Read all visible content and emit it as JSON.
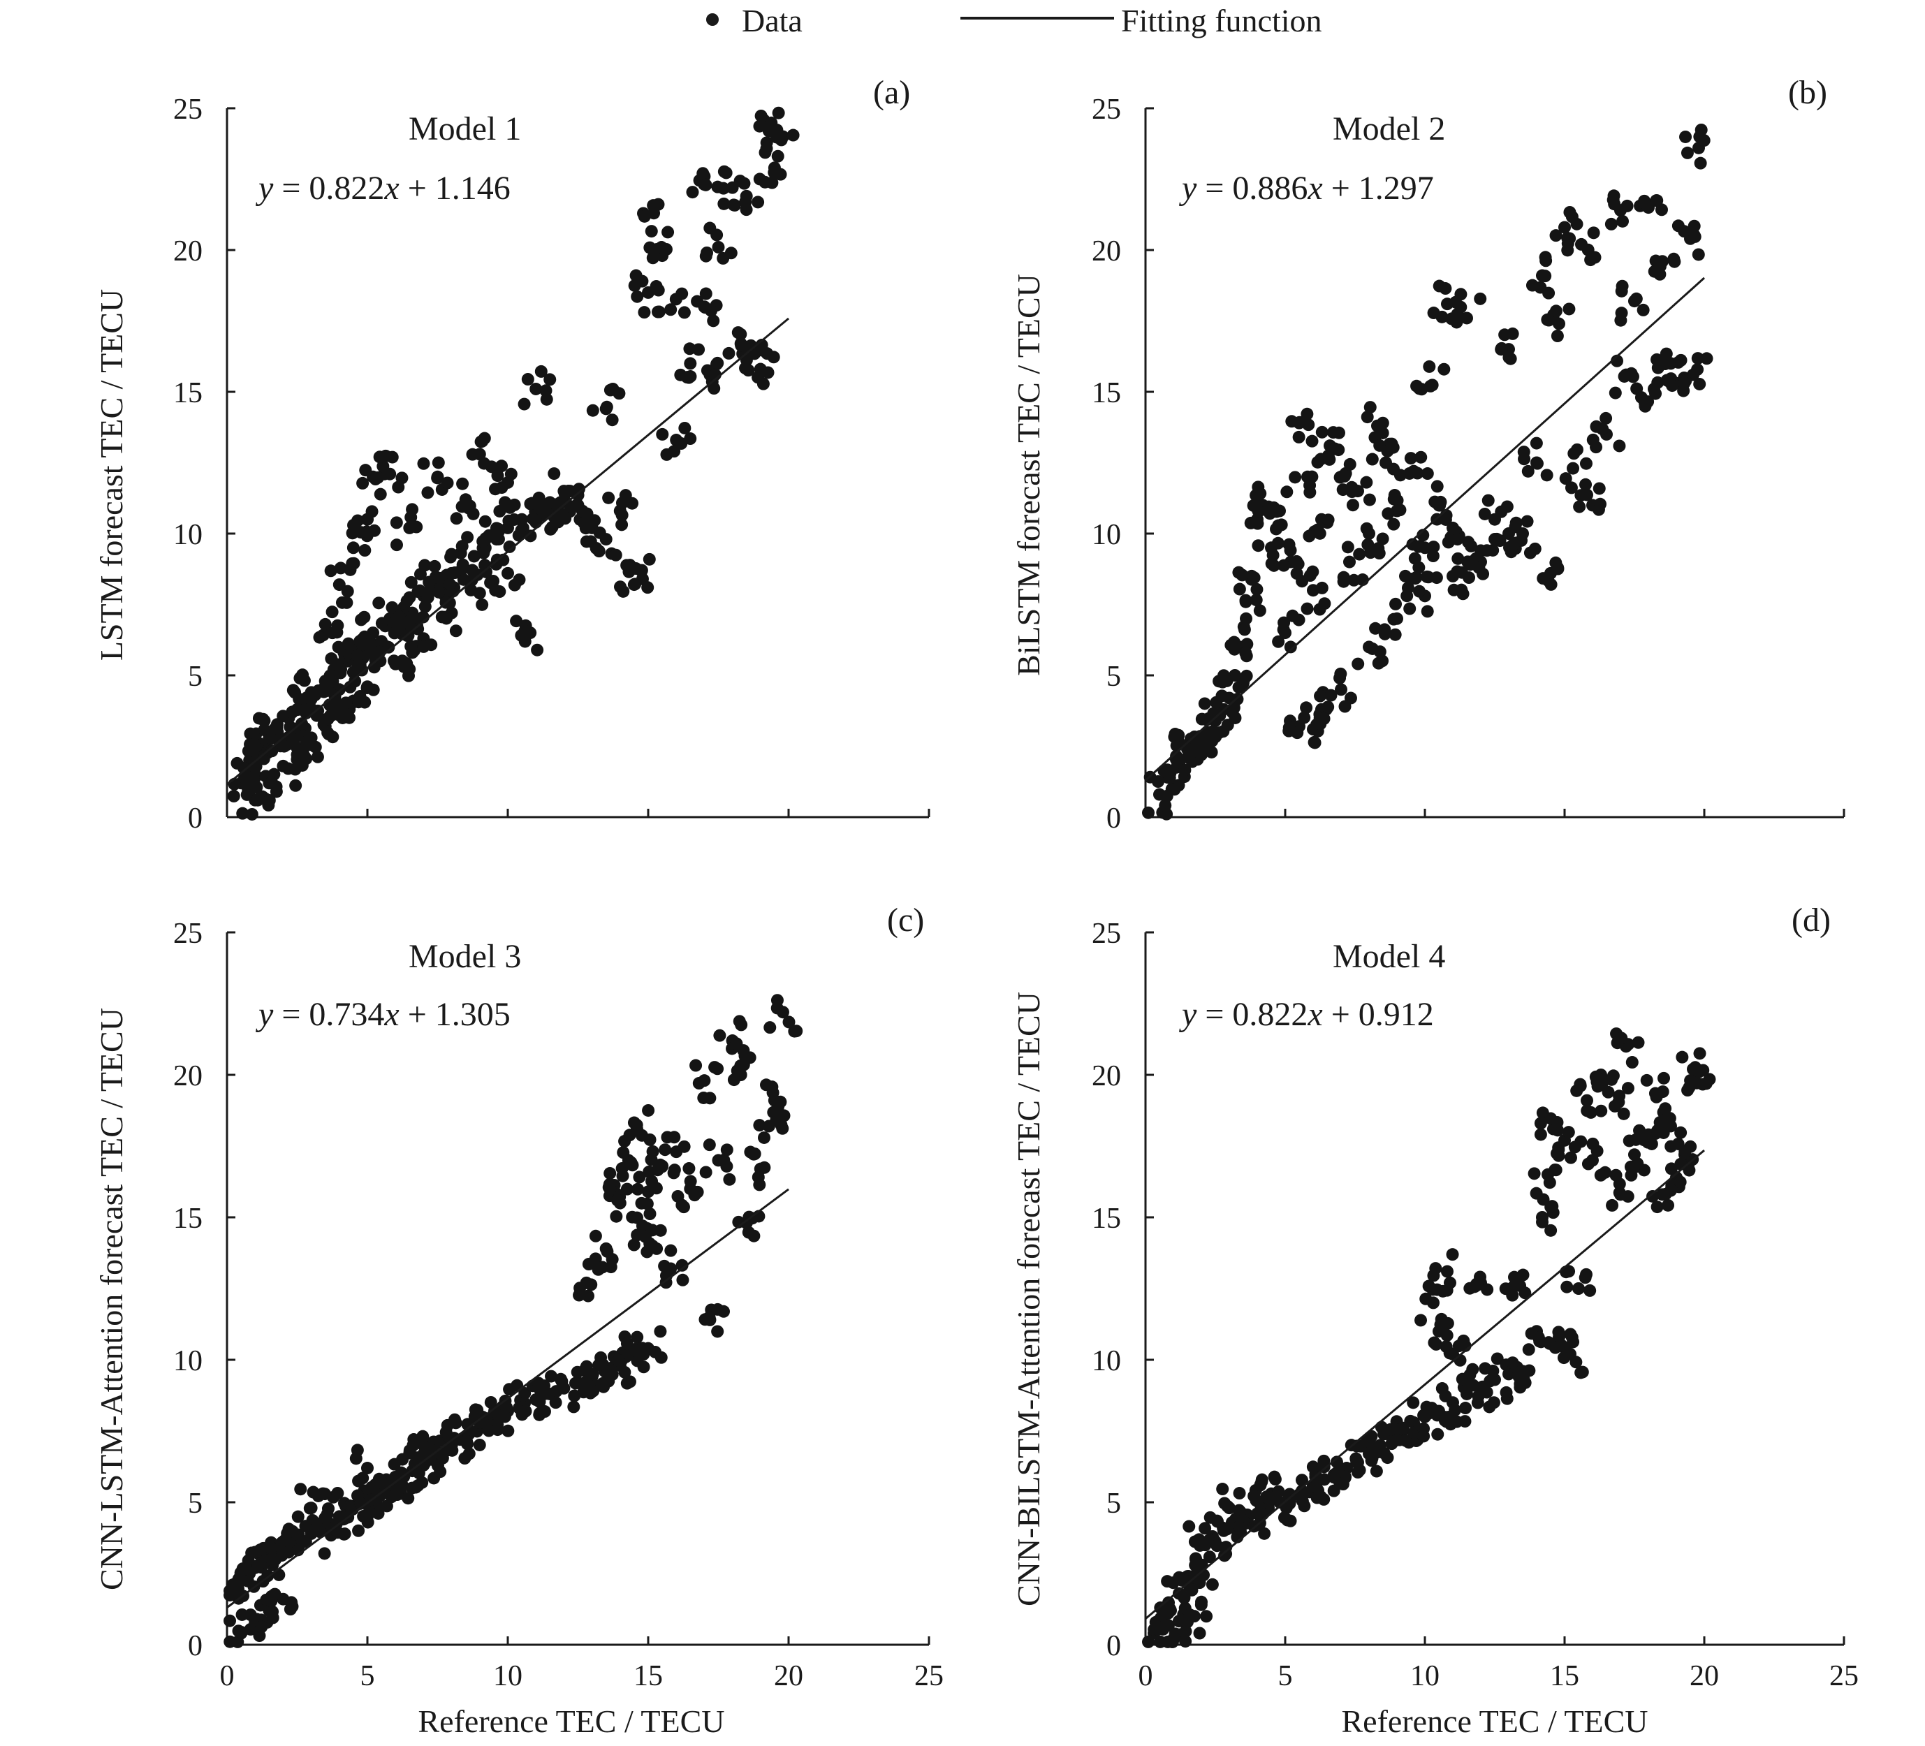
{
  "legend": {
    "data_label": "Data",
    "fit_label": "Fitting function"
  },
  "shared": {
    "xlabel": "Reference TEC / TECU",
    "xticks": [
      0,
      5,
      10,
      15,
      20,
      25
    ],
    "yticks": [
      0,
      5,
      10,
      15,
      20,
      25
    ],
    "xlim": [
      0,
      25
    ],
    "ylim": [
      0,
      25
    ]
  },
  "chart_data": [
    {
      "type": "scatter",
      "panel": "(a)",
      "model": "Model 1",
      "equation": "y = 0.822x + 1.146",
      "eq_parts": {
        "slope": "0.822",
        "intercept": "1.146"
      },
      "fit": {
        "slope": 0.822,
        "intercept": 1.146,
        "x_range": [
          0,
          20
        ]
      },
      "ylabel": "LSTM  forecast TEC / TECU",
      "xlabel": "Reference TEC / TECU",
      "xlim": [
        0,
        25
      ],
      "ylim": [
        0,
        25
      ],
      "points": [
        [
          0.5,
          1.2
        ],
        [
          0.8,
          2.0
        ],
        [
          1.0,
          1.5
        ],
        [
          1.2,
          2.4
        ],
        [
          1.5,
          2.8
        ],
        [
          1.8,
          3.0
        ],
        [
          2.0,
          2.6
        ],
        [
          2.2,
          3.5
        ],
        [
          2.5,
          3.8
        ],
        [
          2.8,
          4.0
        ],
        [
          3.0,
          4.4
        ],
        [
          3.2,
          3.6
        ],
        [
          3.5,
          4.8
        ],
        [
          3.8,
          5.2
        ],
        [
          4.0,
          4.5
        ],
        [
          4.3,
          5.5
        ],
        [
          4.6,
          6.0
        ],
        [
          5.0,
          5.8
        ],
        [
          5.2,
          6.5
        ],
        [
          5.5,
          6.2
        ],
        [
          5.8,
          7.0
        ],
        [
          6.0,
          6.8
        ],
        [
          6.3,
          7.4
        ],
        [
          6.6,
          7.2
        ],
        [
          7.0,
          7.8
        ],
        [
          7.3,
          8.2
        ],
        [
          7.6,
          8.0
        ],
        [
          8.0,
          8.6
        ],
        [
          8.4,
          8.9
        ],
        [
          8.8,
          9.2
        ],
        [
          9.2,
          9.5
        ],
        [
          9.6,
          9.8
        ],
        [
          10.0,
          10.2
        ],
        [
          10.5,
          10.5
        ],
        [
          11.0,
          10.4
        ],
        [
          11.5,
          10.8
        ],
        [
          12.0,
          10.6
        ],
        [
          12.5,
          11.0
        ],
        [
          13.0,
          10.2
        ],
        [
          13.5,
          9.8
        ],
        [
          14.0,
          10.8
        ],
        [
          14.5,
          8.2
        ],
        [
          14.8,
          8.4
        ],
        [
          3.5,
          6.8
        ],
        [
          4.0,
          8.2
        ],
        [
          4.5,
          9.5
        ],
        [
          5.0,
          10.5
        ],
        [
          5.2,
          12.0
        ],
        [
          5.8,
          12.1
        ],
        [
          6.5,
          10.2
        ],
        [
          7.5,
          12.0
        ],
        [
          8.5,
          11.2
        ],
        [
          9.0,
          12.8
        ],
        [
          10.0,
          11.8
        ],
        [
          11.0,
          15.1
        ],
        [
          12.0,
          11.5
        ],
        [
          13.5,
          14.4
        ],
        [
          15.0,
          18.5
        ],
        [
          15.2,
          21.3
        ],
        [
          15.5,
          19.8
        ],
        [
          15.8,
          17.9
        ],
        [
          16.0,
          13.3
        ],
        [
          16.5,
          16.0
        ],
        [
          17.0,
          22.6
        ],
        [
          17.0,
          18.0
        ],
        [
          17.2,
          15.6
        ],
        [
          17.5,
          20.1
        ],
        [
          18.0,
          22.2
        ],
        [
          18.3,
          16.7
        ],
        [
          18.5,
          21.9
        ],
        [
          18.8,
          16.4
        ],
        [
          19.0,
          15.8
        ],
        [
          19.3,
          24.2
        ],
        [
          19.5,
          22.9
        ],
        [
          19.8,
          24.0
        ],
        [
          1.0,
          0.6
        ],
        [
          1.5,
          1.2
        ],
        [
          2.0,
          1.8
        ],
        [
          2.5,
          2.2
        ],
        [
          3.0,
          2.8
        ],
        [
          3.5,
          3.2
        ],
        [
          4.0,
          3.6
        ],
        [
          4.5,
          4.1
        ],
        [
          5.0,
          4.6
        ],
        [
          6.0,
          5.4
        ],
        [
          7.0,
          6.3
        ],
        [
          8.0,
          7.2
        ],
        [
          9.0,
          7.9
        ],
        [
          10.0,
          8.6
        ],
        [
          10.8,
          6.5
        ]
      ]
    },
    {
      "type": "scatter",
      "panel": "(b)",
      "model": "Model 2",
      "equation": "y = 0.886x + 1.297",
      "eq_parts": {
        "slope": "0.886",
        "intercept": "1.297"
      },
      "fit": {
        "slope": 0.886,
        "intercept": 1.297,
        "x_range": [
          0,
          20
        ]
      },
      "ylabel": "BiLSTM forecast TEC / TECU",
      "xlabel": "Reference TEC / TECU",
      "xlim": [
        0,
        25
      ],
      "ylim": [
        0,
        25
      ],
      "points": [
        [
          0.5,
          0.8
        ],
        [
          0.8,
          1.4
        ],
        [
          1.0,
          1.0
        ],
        [
          1.2,
          2.0
        ],
        [
          1.5,
          2.4
        ],
        [
          1.8,
          2.8
        ],
        [
          2.0,
          2.2
        ],
        [
          2.2,
          3.0
        ],
        [
          2.5,
          3.4
        ],
        [
          2.8,
          3.8
        ],
        [
          3.0,
          4.2
        ],
        [
          3.2,
          5.0
        ],
        [
          3.4,
          6.0
        ],
        [
          3.6,
          7.0
        ],
        [
          3.8,
          8.5
        ],
        [
          4.0,
          10.5
        ],
        [
          4.2,
          11.0
        ],
        [
          4.5,
          9.5
        ],
        [
          4.8,
          10.8
        ],
        [
          5.0,
          6.5
        ],
        [
          5.2,
          9.0
        ],
        [
          5.5,
          13.9
        ],
        [
          5.8,
          12.0
        ],
        [
          6.0,
          8.0
        ],
        [
          6.3,
          10.5
        ],
        [
          6.6,
          13.1
        ],
        [
          7.0,
          12.0
        ],
        [
          7.3,
          9.0
        ],
        [
          7.6,
          11.5
        ],
        [
          8.0,
          10.0
        ],
        [
          8.3,
          13.8
        ],
        [
          8.6,
          12.5
        ],
        [
          9.0,
          10.8
        ],
        [
          9.3,
          8.5
        ],
        [
          9.6,
          12.2
        ],
        [
          10.0,
          9.5
        ],
        [
          10.2,
          15.2
        ],
        [
          10.5,
          11.0
        ],
        [
          10.8,
          18.1
        ],
        [
          11.0,
          10.2
        ],
        [
          11.5,
          17.6
        ],
        [
          12.0,
          9.0
        ],
        [
          12.5,
          10.5
        ],
        [
          13.0,
          16.5
        ],
        [
          13.5,
          10.0
        ],
        [
          14.0,
          12.5
        ],
        [
          14.2,
          19.1
        ],
        [
          14.5,
          8.6
        ],
        [
          14.8,
          17.4
        ],
        [
          15.0,
          20.8
        ],
        [
          15.3,
          12.3
        ],
        [
          15.6,
          20.2
        ],
        [
          16.0,
          11.0
        ],
        [
          16.5,
          13.5
        ],
        [
          17.0,
          21.4
        ],
        [
          17.2,
          15.6
        ],
        [
          17.5,
          18.2
        ],
        [
          18.0,
          21.5
        ],
        [
          18.2,
          15.1
        ],
        [
          18.5,
          19.6
        ],
        [
          18.8,
          16.0
        ],
        [
          19.0,
          15.3
        ],
        [
          19.5,
          20.4
        ],
        [
          19.6,
          15.6
        ],
        [
          19.8,
          23.6
        ],
        [
          5.5,
          3.2
        ],
        [
          6.0,
          3.1
        ],
        [
          6.3,
          3.8
        ],
        [
          7.0,
          4.5
        ],
        [
          8.0,
          6.0
        ],
        [
          9.0,
          7.0
        ],
        [
          10.0,
          7.8
        ],
        [
          11.0,
          8.5
        ],
        [
          12.0,
          9.4
        ],
        [
          13.0,
          10.0
        ]
      ]
    },
    {
      "type": "scatter",
      "panel": "(c)",
      "model": "Model 3",
      "equation": "y = 0.734x + 1.305",
      "eq_parts": {
        "slope": "0.734",
        "intercept": "1.305"
      },
      "fit": {
        "slope": 0.734,
        "intercept": 1.305,
        "x_range": [
          0,
          20
        ]
      },
      "ylabel": "CNN-LSTM-Attention  forecast TEC / TECU",
      "xlabel": "Reference TEC / TECU",
      "xlim": [
        0,
        25
      ],
      "ylim": [
        0,
        25
      ],
      "points": [
        [
          0.2,
          2.1
        ],
        [
          0.5,
          2.3
        ],
        [
          0.8,
          2.5
        ],
        [
          1.0,
          2.7
        ],
        [
          1.3,
          2.9
        ],
        [
          1.6,
          3.1
        ],
        [
          2.0,
          3.3
        ],
        [
          2.3,
          3.5
        ],
        [
          2.6,
          3.7
        ],
        [
          3.0,
          3.9
        ],
        [
          3.3,
          4.1
        ],
        [
          3.6,
          4.3
        ],
        [
          4.0,
          4.5
        ],
        [
          4.3,
          4.7
        ],
        [
          4.6,
          4.9
        ],
        [
          5.0,
          5.1
        ],
        [
          5.3,
          5.3
        ],
        [
          5.6,
          5.5
        ],
        [
          6.0,
          5.7
        ],
        [
          6.3,
          5.9
        ],
        [
          6.6,
          6.1
        ],
        [
          7.0,
          6.3
        ],
        [
          7.3,
          6.5
        ],
        [
          7.6,
          6.7
        ],
        [
          8.0,
          7.0
        ],
        [
          8.3,
          7.2
        ],
        [
          8.6,
          7.4
        ],
        [
          9.0,
          7.6
        ],
        [
          9.3,
          7.8
        ],
        [
          9.6,
          8.0
        ],
        [
          10.0,
          8.2
        ],
        [
          10.5,
          8.4
        ],
        [
          11.0,
          8.6
        ],
        [
          11.5,
          8.8
        ],
        [
          12.0,
          9.0
        ],
        [
          12.5,
          9.2
        ],
        [
          13.0,
          9.4
        ],
        [
          13.5,
          9.6
        ],
        [
          14.0,
          9.8
        ],
        [
          14.5,
          10.2
        ],
        [
          3.0,
          4.8
        ],
        [
          5.0,
          6.2
        ],
        [
          7.0,
          7.0
        ],
        [
          0.5,
          0.4
        ],
        [
          1.0,
          0.8
        ],
        [
          1.5,
          1.2
        ],
        [
          2.0,
          1.6
        ],
        [
          12.8,
          12.7
        ],
        [
          13.5,
          13.9
        ],
        [
          13.8,
          15.9
        ],
        [
          14.0,
          15.5
        ],
        [
          14.3,
          17.0
        ],
        [
          14.6,
          18.1
        ],
        [
          14.8,
          14.7
        ],
        [
          15.0,
          15.9
        ],
        [
          15.3,
          13.9
        ],
        [
          15.5,
          16.8
        ],
        [
          15.8,
          13.2
        ],
        [
          16.0,
          17.3
        ],
        [
          16.5,
          16.0
        ],
        [
          17.0,
          19.8
        ],
        [
          17.2,
          11.4
        ],
        [
          17.5,
          17.0
        ],
        [
          18.0,
          21.2
        ],
        [
          18.3,
          20.0
        ],
        [
          18.5,
          14.8
        ],
        [
          19.0,
          16.7
        ],
        [
          19.3,
          18.2
        ],
        [
          19.5,
          19.1
        ],
        [
          19.8,
          22.2
        ],
        [
          15.0,
          10.4
        ],
        [
          14.2,
          10.1
        ],
        [
          13.0,
          9.2
        ]
      ]
    },
    {
      "type": "scatter",
      "panel": "(d)",
      "model": "Model 4",
      "equation": "y = 0.822x + 0.912",
      "eq_parts": {
        "slope": "0.822",
        "intercept": "0.912"
      },
      "fit": {
        "slope": 0.822,
        "intercept": 0.912,
        "x_range": [
          0,
          20
        ]
      },
      "ylabel": "CNN-BILSTM-Attention  forecast TEC / TECU",
      "xlabel": "Reference TEC / TECU",
      "xlim": [
        0,
        25
      ],
      "ylim": [
        0,
        25
      ],
      "points": [
        [
          0.3,
          0.4
        ],
        [
          0.6,
          0.8
        ],
        [
          0.9,
          1.2
        ],
        [
          1.2,
          1.8
        ],
        [
          1.5,
          2.4
        ],
        [
          1.8,
          3.0
        ],
        [
          2.0,
          3.5
        ],
        [
          2.4,
          3.8
        ],
        [
          2.8,
          4.0
        ],
        [
          3.2,
          4.2
        ],
        [
          3.6,
          4.4
        ],
        [
          4.0,
          4.6
        ],
        [
          4.4,
          4.8
        ],
        [
          4.8,
          5.0
        ],
        [
          5.2,
          5.2
        ],
        [
          5.6,
          5.4
        ],
        [
          6.0,
          5.6
        ],
        [
          6.4,
          5.8
        ],
        [
          6.8,
          6.0
        ],
        [
          7.2,
          6.2
        ],
        [
          7.6,
          6.4
        ],
        [
          8.0,
          6.7
        ],
        [
          8.4,
          7.0
        ],
        [
          8.8,
          7.3
        ],
        [
          9.2,
          7.5
        ],
        [
          9.6,
          7.8
        ],
        [
          10.0,
          8.0
        ],
        [
          10.5,
          8.2
        ],
        [
          11.0,
          8.5
        ],
        [
          11.5,
          8.8
        ],
        [
          12.0,
          9.0
        ],
        [
          12.5,
          9.3
        ],
        [
          13.0,
          9.5
        ],
        [
          1.0,
          0.2
        ],
        [
          1.5,
          0.8
        ],
        [
          2.0,
          1.5
        ],
        [
          3.0,
          4.8
        ],
        [
          4.5,
          5.3
        ],
        [
          10.3,
          12.0
        ],
        [
          10.5,
          11.0
        ],
        [
          10.8,
          13.1
        ],
        [
          11.0,
          10.2
        ],
        [
          12.0,
          12.7
        ],
        [
          13.2,
          12.9
        ],
        [
          13.5,
          9.6
        ],
        [
          14.0,
          11.0
        ],
        [
          14.2,
          15.0
        ],
        [
          14.4,
          16.5
        ],
        [
          14.6,
          18.1
        ],
        [
          14.8,
          10.8
        ],
        [
          15.0,
          17.7
        ],
        [
          15.2,
          10.2
        ],
        [
          15.5,
          12.5
        ],
        [
          15.8,
          19.1
        ],
        [
          16.0,
          17.0
        ],
        [
          16.3,
          20.0
        ],
        [
          16.8,
          18.9
        ],
        [
          17.0,
          15.8
        ],
        [
          17.2,
          21.0
        ],
        [
          17.5,
          17.2
        ],
        [
          18.0,
          17.9
        ],
        [
          18.3,
          19.3
        ],
        [
          18.5,
          15.8
        ],
        [
          18.8,
          18.2
        ],
        [
          19.0,
          16.4
        ],
        [
          19.3,
          17.2
        ],
        [
          19.6,
          20.2
        ],
        [
          19.8,
          20.1
        ]
      ]
    }
  ]
}
